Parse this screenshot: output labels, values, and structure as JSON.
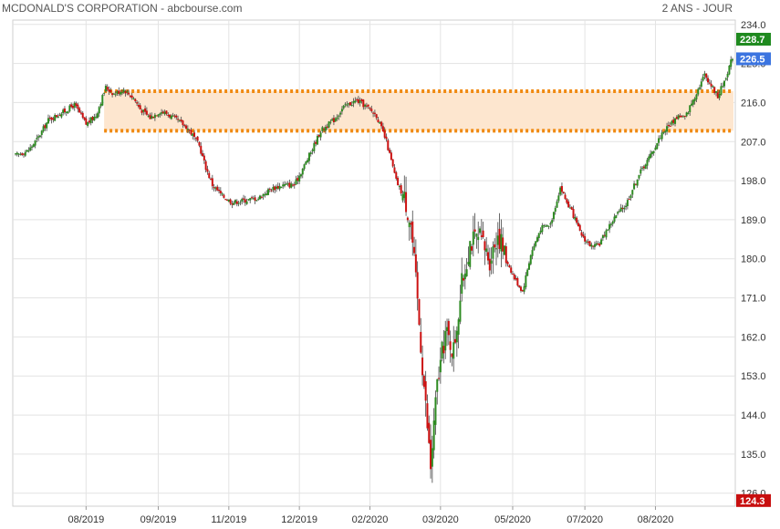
{
  "header": {
    "title": "MCDONALD'S CORPORATION - abcbourse.com",
    "period": "2 ANS - JOUR"
  },
  "colors": {
    "up": "#2e8b22",
    "down": "#cc1111",
    "zone_line": "#f08a12",
    "zone_fill": "#fde6cf",
    "grid": "#e3e3e3",
    "last_badge": "#3b74e0",
    "high_badge": "#1f8a1f",
    "low_badge": "#c80f0f"
  },
  "chart_data": {
    "type": "candlestick",
    "title": "MCDONALD'S CORPORATION - abcbourse.com",
    "period": "2 ANS - JOUR",
    "y_axis_side": "right",
    "ylim": [
      123,
      235
    ],
    "y_ticks": [
      "234.0",
      "225.0",
      "216.0",
      "207.0",
      "198.0",
      "189.0",
      "180.0",
      "171.0",
      "162.0",
      "153.0",
      "144.0",
      "135.0",
      "126.0"
    ],
    "x_ticks": [
      "08/2019",
      "09/2019",
      "11/2019",
      "12/2019",
      "02/2020",
      "03/2020",
      "05/2020",
      "07/2020",
      "08/2020"
    ],
    "resistance_zone": {
      "upper": 218.6,
      "lower": 209.5
    },
    "badges": {
      "high": "228.7",
      "last": "226.5",
      "low": "124.3"
    },
    "grid": true,
    "anchors": [
      [
        0,
        203.8
      ],
      [
        8,
        205.0
      ],
      [
        14,
        208.0
      ],
      [
        20,
        212.0
      ],
      [
        30,
        214.0
      ],
      [
        36,
        215.5
      ],
      [
        43,
        211.0
      ],
      [
        49,
        213.0
      ],
      [
        55,
        219.5
      ],
      [
        60,
        218.0
      ],
      [
        66,
        219.0
      ],
      [
        72,
        217.0
      ],
      [
        76,
        214.5
      ],
      [
        82,
        212.5
      ],
      [
        88,
        214.0
      ],
      [
        92,
        213.5
      ],
      [
        98,
        212.0
      ],
      [
        104,
        210.5
      ],
      [
        108,
        208.5
      ],
      [
        112,
        206.0
      ],
      [
        116,
        201.0
      ],
      [
        120,
        197.0
      ],
      [
        126,
        194.5
      ],
      [
        132,
        193.0
      ],
      [
        140,
        193.5
      ],
      [
        148,
        194.0
      ],
      [
        155,
        196.0
      ],
      [
        163,
        197.0
      ],
      [
        170,
        197.0
      ],
      [
        178,
        203.0
      ],
      [
        186,
        209.5
      ],
      [
        194,
        212.0
      ],
      [
        200,
        215.0
      ],
      [
        208,
        216.5
      ],
      [
        214,
        215.0
      ],
      [
        220,
        213.0
      ],
      [
        226,
        207.0
      ],
      [
        232,
        198.0
      ],
      [
        238,
        193.0
      ],
      [
        241,
        188.0
      ],
      [
        245,
        170.0
      ],
      [
        250,
        146.0
      ],
      [
        253,
        132.0
      ],
      [
        257,
        151.0
      ],
      [
        262,
        163.0
      ],
      [
        267,
        159.0
      ],
      [
        272,
        174.0
      ],
      [
        277,
        184.0
      ],
      [
        283,
        184.5
      ],
      [
        289,
        180.0
      ],
      [
        294,
        186.0
      ],
      [
        299,
        180.0
      ],
      [
        304,
        175.5
      ],
      [
        309,
        172.5
      ],
      [
        314,
        181.0
      ],
      [
        320,
        187.0
      ],
      [
        326,
        188.0
      ],
      [
        332,
        196.5
      ],
      [
        336,
        193.0
      ],
      [
        340,
        190.0
      ],
      [
        344,
        186.0
      ],
      [
        348,
        184.0
      ],
      [
        352,
        182.5
      ],
      [
        356,
        183.5
      ],
      [
        360,
        186.5
      ],
      [
        366,
        190.0
      ],
      [
        372,
        192.5
      ],
      [
        380,
        199.5
      ],
      [
        388,
        204.5
      ],
      [
        394,
        209.0
      ],
      [
        399,
        211.0
      ],
      [
        404,
        213.0
      ],
      [
        408,
        212.5
      ],
      [
        414,
        217.5
      ],
      [
        420,
        222.5
      ],
      [
        424,
        220.0
      ],
      [
        428,
        217.5
      ],
      [
        432,
        221.0
      ],
      [
        437,
        226.5
      ]
    ],
    "sessions": 438,
    "x_tick_sessions": [
      43,
      87,
      130,
      173,
      216,
      259,
      303,
      347,
      390
    ]
  }
}
